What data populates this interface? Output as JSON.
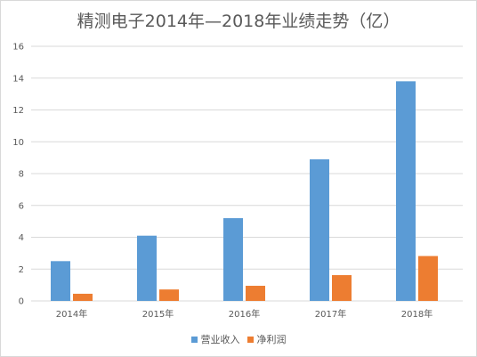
{
  "chart_data": {
    "type": "bar",
    "title": "精测电子2014年—2018年业绩走势（亿）",
    "xlabel": "",
    "ylabel": "",
    "categories": [
      "2014年",
      "2015年",
      "2016年",
      "2017年",
      "2018年"
    ],
    "series": [
      {
        "name": "营业收入",
        "color": "#5B9BD5",
        "values": [
          2.5,
          4.1,
          5.2,
          8.9,
          13.8
        ]
      },
      {
        "name": "净利润",
        "color": "#ED7D31",
        "values": [
          0.45,
          0.72,
          0.95,
          1.62,
          2.82
        ]
      }
    ],
    "ylim": [
      0,
      16
    ],
    "yticks": [
      0,
      2,
      4,
      6,
      8,
      10,
      12,
      14,
      16
    ],
    "grid": true,
    "legend": "bottom"
  }
}
